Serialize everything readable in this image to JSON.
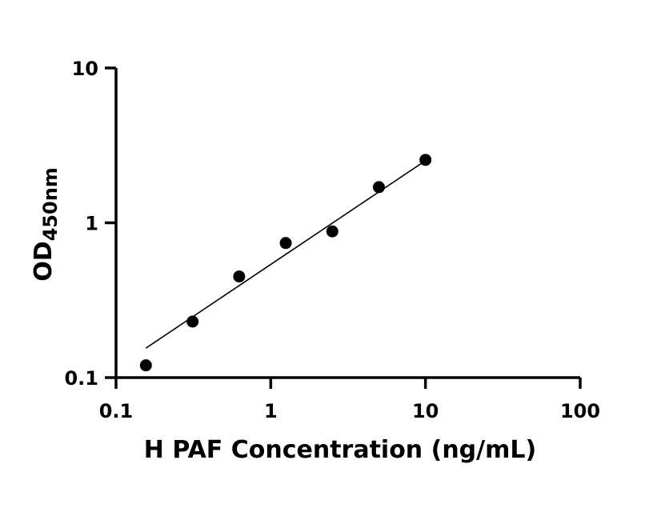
{
  "chart_data": {
    "type": "scatter",
    "title": "",
    "xlabel": "H PAF Concentration (ng/mL)",
    "ylabel": "OD",
    "ylabel_subscript": "450nm",
    "x_scale": "log",
    "y_scale": "log",
    "xlim": [
      0.1,
      100
    ],
    "ylim": [
      0.1,
      10
    ],
    "x_ticks": [
      {
        "value": 0.1,
        "label": "0.1"
      },
      {
        "value": 1,
        "label": "1"
      },
      {
        "value": 10,
        "label": "10"
      },
      {
        "value": 100,
        "label": "100"
      }
    ],
    "y_ticks": [
      {
        "value": 0.1,
        "label": "0.1"
      },
      {
        "value": 1,
        "label": "1"
      },
      {
        "value": 10,
        "label": "10"
      }
    ],
    "grid": false,
    "legend": "none",
    "series": [
      {
        "x": [
          0.156,
          0.3125,
          0.625,
          1.25,
          2.5,
          5,
          10
        ],
        "y": [
          0.12,
          0.23,
          0.45,
          0.74,
          0.88,
          1.7,
          2.55
        ],
        "marker": "circle",
        "color": "#000000"
      }
    ],
    "fit_line": {
      "x": [
        0.156,
        10
      ],
      "y": [
        0.155,
        2.52
      ],
      "color": "#000000"
    }
  }
}
